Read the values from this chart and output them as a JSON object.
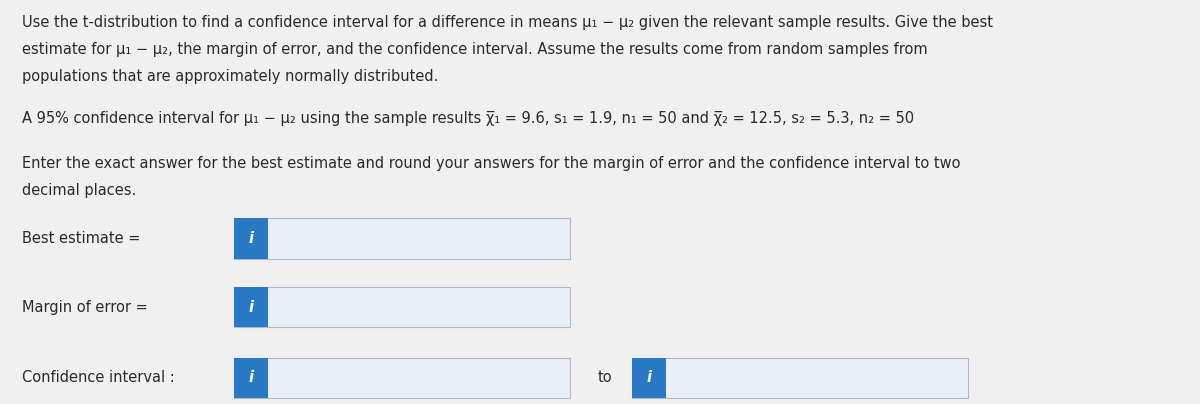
{
  "bg_color": "#f0f0f0",
  "text_color": "#2a2a2a",
  "box_facecolor": "#e8eef5",
  "box_edgecolor": "#b0b8c8",
  "icon_color": "#2979c4",
  "line1": "Use the t-distribution to find a confidence interval for a difference in means μ₁ − μ₂ given the relevant sample results. Give the best",
  "line2": "estimate for μ₁ − μ₂, the margin of error, and the confidence interval. Assume the results come from random samples from",
  "line3": "populations that are approximately normally distributed.",
  "line4": "A 95% confidence interval for μ₁ − μ₂ using the sample results χ̅₁ = 9.6, s₁ = 1.9, n₁ = 50 and χ̅₂ = 12.5, s₂ = 5.3, n₂ = 50",
  "line5": "Enter the exact answer for the best estimate and round your answers for the margin of error and the confidence interval to two",
  "line6": "decimal places.",
  "label1": "Best estimate = ",
  "label2": "Margin of error = ",
  "label3": "Confidence interval : ",
  "to_label": "to",
  "font_size_body": 10.5,
  "font_size_label": 10.5
}
